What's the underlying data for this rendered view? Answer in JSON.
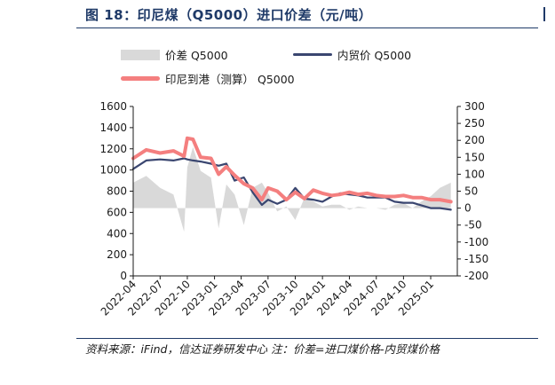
{
  "header": {
    "title": "图 18：印尼煤（Q5000）进口价差（元/吨）"
  },
  "footer": {
    "source": "资料来源：iFind，信达证券研发中心 注：价差=进口煤价格-内贸煤价格"
  },
  "colors": {
    "spread": "#d9d9d9",
    "domestic": "#3a4670",
    "indonesia": "#f47f7f"
  },
  "chart_data": {
    "type": "line",
    "title": "",
    "legend_placement": "top",
    "x_tick_labels": [
      "2022-04",
      "2022-07",
      "2022-10",
      "2023-01",
      "2023-04",
      "2023-07",
      "2023-10",
      "2024-01",
      "2024-04",
      "2024-07",
      "2024-10",
      "2025-01"
    ],
    "x": [
      "2022-04-01",
      "2022-05-15",
      "2022-07-01",
      "2022-08-15",
      "2022-09-20",
      "2022-10-01",
      "2022-10-20",
      "2022-11-15",
      "2022-12-20",
      "2023-01-15",
      "2023-02-10",
      "2023-03-10",
      "2023-04-10",
      "2023-05-10",
      "2023-06-10",
      "2023-07-01",
      "2023-08-01",
      "2023-09-01",
      "2023-10-01",
      "2023-11-01",
      "2023-12-01",
      "2024-01-01",
      "2024-02-01",
      "2024-03-01",
      "2024-04-01",
      "2024-05-01",
      "2024-06-01",
      "2024-07-01",
      "2024-08-01",
      "2024-09-01",
      "2024-10-01",
      "2024-11-01",
      "2024-12-01",
      "2025-01-01",
      "2025-02-01",
      "2025-03-10"
    ],
    "y_left": {
      "ticks": [
        0,
        200,
        400,
        600,
        800,
        1000,
        1200,
        1400,
        1600
      ],
      "range": [
        0,
        1600
      ]
    },
    "y_right": {
      "ticks": [
        300,
        250,
        200,
        150,
        100,
        50,
        0,
        -50,
        -100,
        -150,
        -200
      ],
      "range": [
        -200,
        300
      ]
    },
    "series": [
      {
        "name": "价差 Q5000",
        "axis": "right",
        "style": "area",
        "values": [
          75,
          95,
          60,
          40,
          -70,
          120,
          180,
          110,
          90,
          -60,
          70,
          40,
          -50,
          60,
          75,
          45,
          -10,
          5,
          -35,
          30,
          20,
          5,
          10,
          10,
          -5,
          5,
          0,
          0,
          -5,
          10,
          15,
          0,
          20,
          35,
          60,
          75
        ]
      },
      {
        "name": "内贸价 Q5000",
        "axis": "left",
        "style": "line",
        "values": [
          1010,
          1090,
          1100,
          1090,
          1110,
          1100,
          1090,
          1080,
          1060,
          1040,
          1060,
          900,
          930,
          790,
          670,
          720,
          680,
          720,
          830,
          730,
          720,
          700,
          750,
          780,
          770,
          760,
          740,
          740,
          740,
          700,
          690,
          690,
          665,
          640,
          640,
          625
        ]
      },
      {
        "name": "印尼到港（测算） Q5000",
        "axis": "left",
        "style": "line",
        "values": [
          1110,
          1190,
          1160,
          1180,
          1130,
          1300,
          1290,
          1120,
          1110,
          960,
          1030,
          950,
          870,
          830,
          720,
          830,
          800,
          720,
          790,
          730,
          810,
          780,
          760,
          770,
          790,
          770,
          780,
          760,
          750,
          750,
          760,
          740,
          740,
          720,
          720,
          700
        ]
      }
    ]
  }
}
